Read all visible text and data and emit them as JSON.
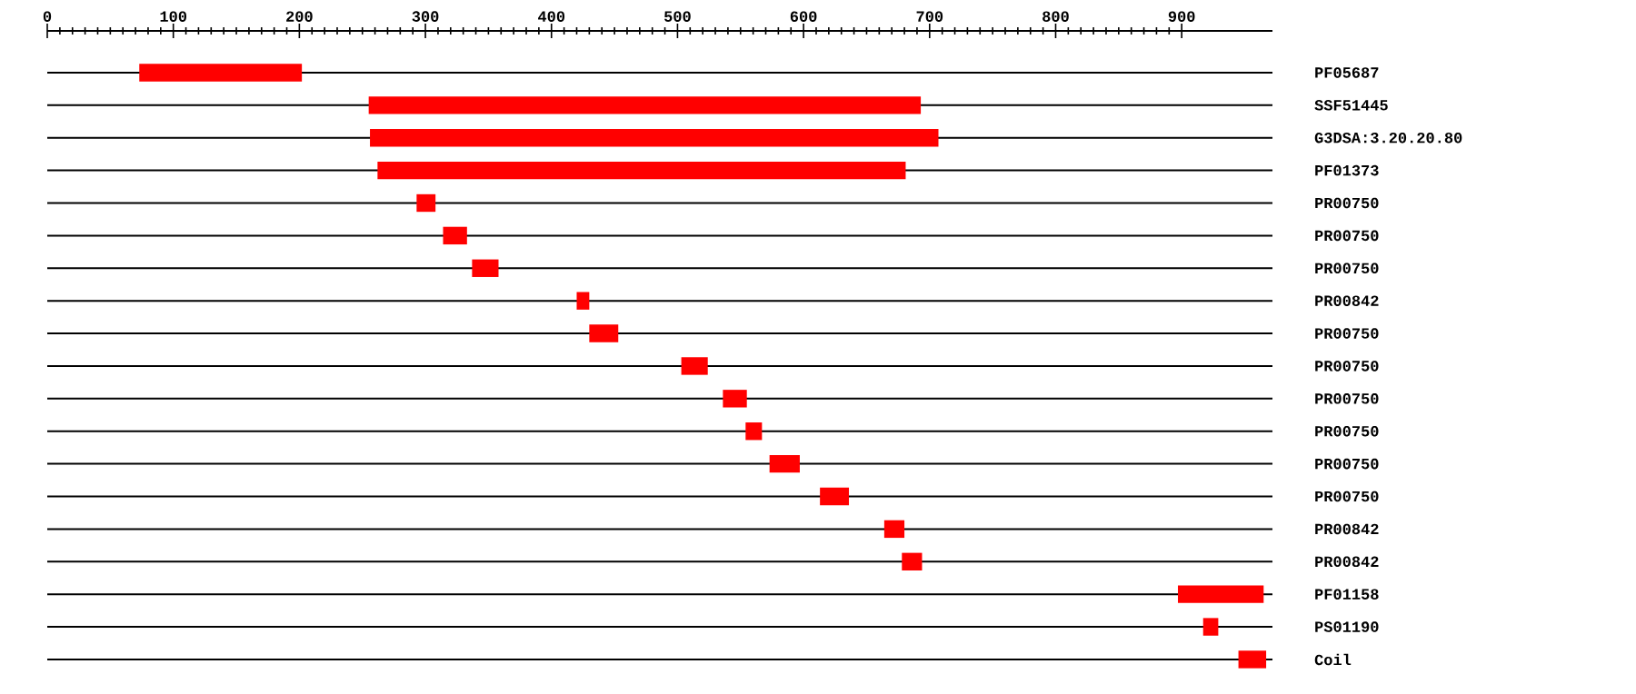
{
  "chart_data": {
    "type": "bar",
    "orientation": "horizontal",
    "grid": "y",
    "categories": [
      "PF05687",
      "SSF51445",
      "G3DSA:3.20.20.80",
      "PF01373",
      "PR00750",
      "PR00750",
      "PR00750",
      "PR00842",
      "PR00750",
      "PR00750",
      "PR00750",
      "PR00750",
      "PR00750",
      "PR00750",
      "PR00842",
      "PR00842",
      "PF01158",
      "PS01190",
      "Coil"
    ],
    "base": [
      73,
      255,
      256,
      262,
      293,
      314,
      337,
      420,
      430,
      503,
      536,
      554,
      573,
      613,
      664,
      678,
      897,
      917,
      945
    ],
    "values": [
      129,
      438,
      451,
      419,
      15,
      19,
      21,
      10,
      23,
      21,
      19,
      13,
      24,
      23,
      16,
      16,
      68,
      12,
      22
    ],
    "color": "#ff0000",
    "xlim": [
      0,
      972
    ],
    "xticks": [
      0,
      100,
      200,
      300,
      400,
      500,
      600,
      700,
      800,
      900
    ]
  }
}
